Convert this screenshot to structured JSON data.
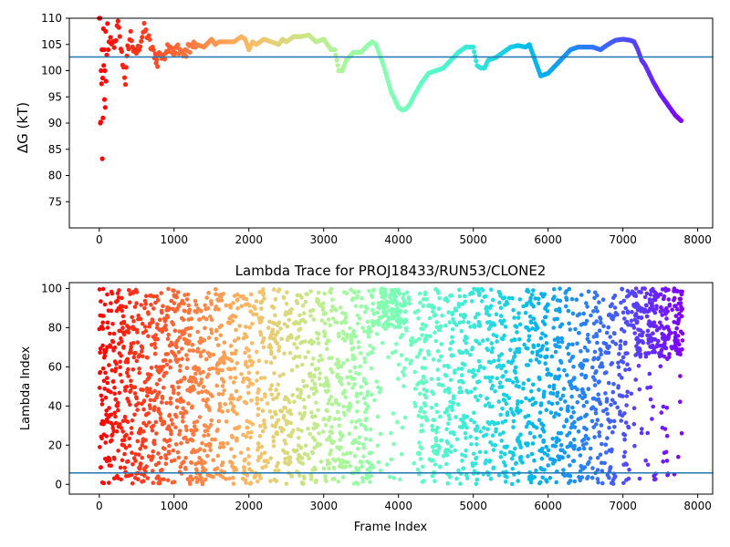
{
  "chart_data": [
    {
      "type": "scatter",
      "title": "",
      "xlabel": "",
      "ylabel": "ΔG (kT)",
      "xlim": [
        -400,
        8200
      ],
      "ylim": [
        70,
        110
      ],
      "xticks": [
        0,
        1000,
        2000,
        3000,
        4000,
        5000,
        6000,
        7000,
        8000
      ],
      "yticks": [
        75,
        80,
        85,
        90,
        95,
        100,
        105,
        110
      ],
      "hline": 102.6,
      "colormap": "rainbow (red at frame 0 → violet at final frame)",
      "early_points": {
        "x": [
          0,
          10,
          15,
          20,
          25,
          30,
          35,
          40,
          45,
          50,
          55,
          60,
          65,
          70,
          75,
          80,
          85,
          90,
          100,
          110,
          120,
          130
        ],
        "y": [
          110,
          110,
          90,
          90.2,
          100,
          97.5,
          104,
          83.2,
          98.6,
          91,
          108,
          101,
          104,
          94.5,
          100,
          93,
          107.5,
          98,
          103,
          109,
          104,
          105.5
        ]
      },
      "series": [
        {
          "x": [
            150,
            200,
            250,
            300,
            350,
            380,
            420,
            470,
            520,
            560,
            600,
            650,
            700,
            750,
            780,
            800,
            850,
            900,
            950,
            1000,
            1050,
            1100,
            1150,
            1200,
            1300,
            1400,
            1500,
            1550,
            1600,
            1700,
            1800,
            1900,
            1950,
            2000,
            2050,
            2100,
            2200,
            2300,
            2400,
            2450,
            2500,
            2600,
            2700,
            2800,
            2900,
            3000,
            3100,
            3150,
            3200,
            3250,
            3300,
            3400,
            3500,
            3600,
            3650,
            3700,
            3800,
            3900,
            4000,
            4050,
            4100,
            4150,
            4200,
            4300,
            4400,
            4500,
            4600,
            4700,
            4800,
            4850,
            4900,
            5000,
            5050,
            5100,
            5150,
            5200,
            5300,
            5400,
            5500,
            5600,
            5700,
            5750,
            5800,
            5850,
            5900,
            6000,
            6100,
            6200,
            6300,
            6400,
            6500,
            6600,
            6700,
            6800,
            6900,
            7000,
            7100,
            7150,
            7200,
            7250,
            7300,
            7400,
            7500,
            7600,
            7700,
            7790
          ],
          "y": [
            106,
            104,
            109,
            103,
            98,
            104,
            107,
            103,
            104,
            106,
            108,
            106.5,
            104,
            103,
            101,
            104,
            102,
            104.5,
            105,
            103,
            104.5,
            103.5,
            103,
            104.5,
            105,
            104.5,
            106,
            105,
            105.5,
            105.5,
            105.5,
            106.5,
            106,
            104,
            105.5,
            105,
            106,
            105.5,
            105,
            106,
            105.5,
            106.5,
            106.5,
            106.8,
            105.5,
            106,
            104,
            104,
            100,
            100,
            102,
            103.5,
            103.5,
            105,
            105.5,
            105,
            101,
            96,
            93,
            92.5,
            92.7,
            93.5,
            95,
            97.5,
            99.5,
            100,
            100.5,
            102,
            103.5,
            104,
            104.5,
            104.5,
            101,
            100.5,
            100.5,
            102,
            102.5,
            103.5,
            104.5,
            104.8,
            104.5,
            105,
            103,
            101,
            99,
            99.5,
            101,
            102.5,
            104,
            104.5,
            104.5,
            104.5,
            104,
            105,
            105.8,
            106,
            105.8,
            105.5,
            104,
            102,
            101,
            98,
            95.5,
            93.5,
            91.5,
            90.3
          ]
        }
      ]
    },
    {
      "type": "scatter",
      "title": "Lambda Trace for PROJ18433/RUN53/CLONE2",
      "xlabel": "Frame Index",
      "ylabel": "Lambda Index",
      "xlim": [
        -400,
        8200
      ],
      "ylim": [
        -5,
        103
      ],
      "xticks": [
        0,
        1000,
        2000,
        3000,
        4000,
        5000,
        6000,
        7000,
        8000
      ],
      "yticks": [
        0,
        20,
        40,
        60,
        80,
        100
      ],
      "hline": 5.8,
      "colormap": "rainbow (red at frame 0 → violet at final frame)",
      "n_frames": 7800,
      "lambda_range": [
        0,
        100
      ],
      "dense_regions": [
        {
          "x_range": [
            3650,
            4100
          ],
          "y_range": [
            80,
            100
          ]
        },
        {
          "x_range": [
            7100,
            7800
          ],
          "y_range": [
            65,
            100
          ]
        }
      ],
      "sparse_gaps": [
        {
          "x_range": [
            4100,
            4200
          ],
          "y_range": [
            0,
            60
          ]
        },
        {
          "x_range": [
            6900,
            7000
          ],
          "y_range": [
            0,
            30
          ]
        }
      ]
    }
  ]
}
